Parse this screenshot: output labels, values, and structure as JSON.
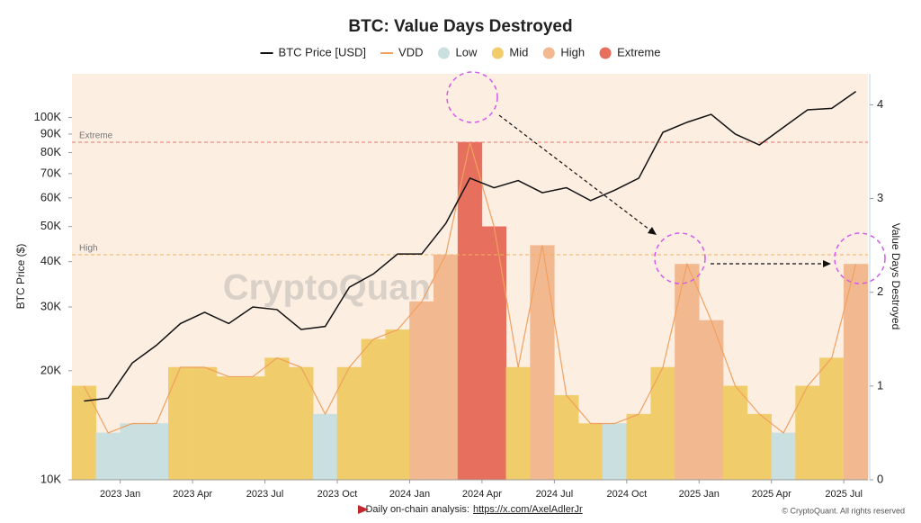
{
  "chart_data": {
    "type": "line",
    "title": "BTC: Value Days Destroyed",
    "ylabel": "BTC Price ($)",
    "y2label": "Value Days Destroyed",
    "watermark": "CryptoQuant",
    "footer": "Daily on-chain analysis: ",
    "footer_link": "https://x.com/AxelAdlerJr",
    "copyright": "© CryptoQuant. All rights reserved",
    "log_scale": true,
    "x": [
      "2022-11",
      "2022-12",
      "2023-01",
      "2023-02",
      "2023-03",
      "2023-04",
      "2023-05",
      "2023-06",
      "2023-07",
      "2023-08",
      "2023-09",
      "2023-10",
      "2023-11",
      "2023-12",
      "2024-01",
      "2024-02",
      "2024-03",
      "2024-04",
      "2024-05",
      "2024-06",
      "2024-07",
      "2024-08",
      "2024-09",
      "2024-10",
      "2024-11",
      "2024-12",
      "2025-01",
      "2025-02",
      "2025-03",
      "2025-04",
      "2025-05",
      "2025-06",
      "2025-07"
    ],
    "xlim": [
      "2022-11",
      "2025-08"
    ],
    "xticks": [
      {
        "value": "2023-01",
        "label": "2023 Jan"
      },
      {
        "value": "2023-04",
        "label": "2023 Apr"
      },
      {
        "value": "2023-07",
        "label": "2023 Jul"
      },
      {
        "value": "2023-10",
        "label": "2023 Oct"
      },
      {
        "value": "2024-01",
        "label": "2024 Jan"
      },
      {
        "value": "2024-04",
        "label": "2024 Apr"
      },
      {
        "value": "2024-07",
        "label": "2024 Jul"
      },
      {
        "value": "2024-10",
        "label": "2024 Oct"
      },
      {
        "value": "2025-01",
        "label": "2025 Jan"
      },
      {
        "value": "2025-04",
        "label": "2025 Apr"
      },
      {
        "value": "2025-07",
        "label": "2025 Jul"
      }
    ],
    "ylim": [
      10000,
      132000
    ],
    "yticks": [
      {
        "value": 10000,
        "label": "10K"
      },
      {
        "value": 20000,
        "label": "20K"
      },
      {
        "value": 30000,
        "label": "30K"
      },
      {
        "value": 40000,
        "label": "40K"
      },
      {
        "value": 50000,
        "label": "50K"
      },
      {
        "value": 60000,
        "label": "60K"
      },
      {
        "value": 70000,
        "label": "70K"
      },
      {
        "value": 80000,
        "label": "80K"
      },
      {
        "value": 90000,
        "label": "90K"
      },
      {
        "value": 100000,
        "label": "100K"
      }
    ],
    "y2lim": [
      0,
      4.33
    ],
    "y2ticks": [
      0,
      1,
      2,
      3,
      4
    ],
    "series": [
      {
        "name": "BTC Price [USD]",
        "color": "#111111",
        "values": [
          16500,
          16800,
          21000,
          23500,
          27000,
          29000,
          27000,
          30000,
          29500,
          26000,
          26500,
          34000,
          37000,
          42000,
          42000,
          51000,
          68000,
          64000,
          67000,
          62000,
          64000,
          59000,
          63000,
          68000,
          91000,
          97000,
          102000,
          90000,
          84000,
          94000,
          105000,
          106000,
          118000
        ]
      },
      {
        "name": "VDD",
        "color": "#f0a060",
        "axis": "y2",
        "values": [
          1.0,
          0.5,
          0.6,
          0.6,
          1.2,
          1.2,
          1.1,
          1.1,
          1.3,
          1.2,
          0.7,
          1.2,
          1.5,
          1.6,
          1.9,
          2.4,
          3.6,
          2.7,
          1.2,
          2.5,
          0.9,
          0.6,
          0.6,
          0.7,
          1.2,
          2.3,
          1.7,
          1.0,
          0.7,
          0.5,
          1.0,
          1.3,
          2.3
        ],
        "regime": [
          "Mid",
          "Low",
          "Low",
          "Low",
          "Mid",
          "Mid",
          "Mid",
          "Mid",
          "Mid",
          "Mid",
          "Low",
          "Mid",
          "Mid",
          "Mid",
          "High",
          "High",
          "Extreme",
          "Extreme",
          "Mid",
          "High",
          "Mid",
          "Mid",
          "Low",
          "Mid",
          "Mid",
          "High",
          "High",
          "Mid",
          "Mid",
          "Low",
          "Mid",
          "Mid",
          "High"
        ]
      }
    ],
    "regimes": [
      {
        "name": "Low",
        "color": "#c9dfe0"
      },
      {
        "name": "Mid",
        "color": "#f0cd6a"
      },
      {
        "name": "High",
        "color": "#f2b991"
      },
      {
        "name": "Extreme",
        "color": "#e66f5e"
      }
    ],
    "thresholds": [
      {
        "label": "Extreme",
        "value": 3.6,
        "color": "#e9776b"
      },
      {
        "label": "High",
        "value": 2.4,
        "color": "#f0b060"
      }
    ]
  }
}
